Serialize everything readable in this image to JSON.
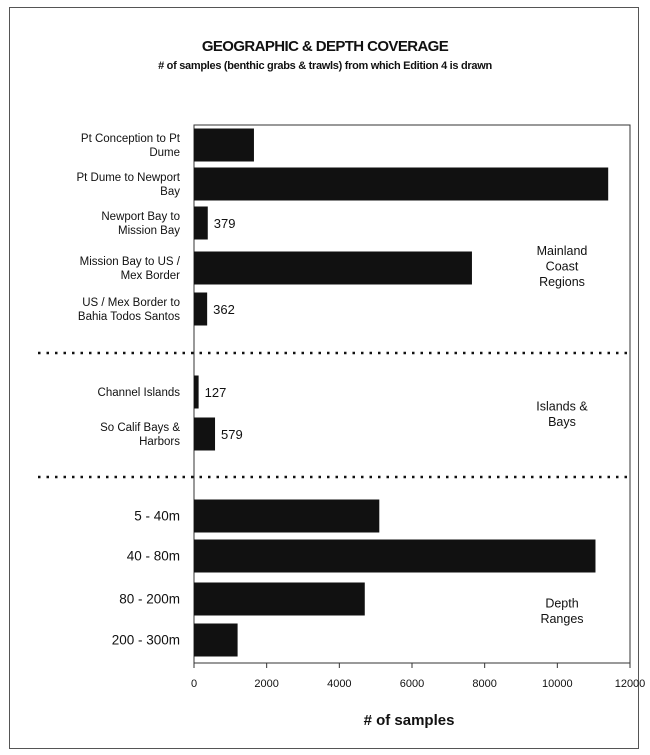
{
  "chart_data": {
    "type": "bar",
    "orientation": "horizontal",
    "title": "GEOGRAPHIC & DEPTH COVERAGE",
    "subtitle": "# of samples (benthic grabs & trawls) from which Edition 4 is drawn",
    "xlabel": "# of samples",
    "xlim": [
      0,
      12000
    ],
    "xticks": [
      "0",
      "2000",
      "4000",
      "6000",
      "8000",
      "10000",
      "12000"
    ],
    "groups": [
      {
        "label": [
          "Mainland",
          "Coast",
          "Regions"
        ],
        "bars": [
          {
            "category": [
              "Pt Conception to Pt",
              "Dume"
            ],
            "value": 1650,
            "data_label": ""
          },
          {
            "category": [
              "Pt Dume to Newport",
              "Bay"
            ],
            "value": 11400,
            "data_label": ""
          },
          {
            "category": [
              "Newport Bay  to",
              "Mission Bay"
            ],
            "value": 379,
            "data_label": "379"
          },
          {
            "category": [
              "Mission Bay to US /",
              "Mex Border"
            ],
            "value": 7650,
            "data_label": ""
          },
          {
            "category": [
              "US / Mex Border to",
              "Bahia Todos Santos"
            ],
            "value": 362,
            "data_label": "362"
          }
        ]
      },
      {
        "label": [
          "Islands &",
          "Bays"
        ],
        "bars": [
          {
            "category": [
              "Channel Islands"
            ],
            "value": 127,
            "data_label": "127"
          },
          {
            "category": [
              "So Calif Bays &",
              "Harbors"
            ],
            "value": 579,
            "data_label": "579"
          }
        ]
      },
      {
        "label": [
          "Depth",
          "Ranges"
        ],
        "bars": [
          {
            "category": [
              "5 - 40m"
            ],
            "value": 5100,
            "data_label": ""
          },
          {
            "category": [
              "40 - 80m"
            ],
            "value": 11050,
            "data_label": ""
          },
          {
            "category": [
              "80 - 200m"
            ],
            "value": 4700,
            "data_label": ""
          },
          {
            "category": [
              "200 - 300m"
            ],
            "value": 1200,
            "data_label": ""
          }
        ]
      }
    ],
    "bar_color": "#111111"
  }
}
